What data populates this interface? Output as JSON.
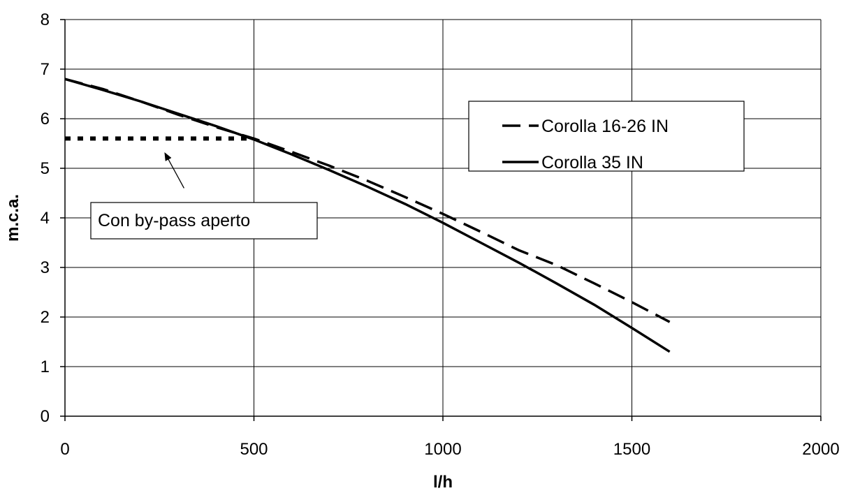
{
  "chart_data": {
    "type": "line",
    "title": "",
    "xlabel": "l/h",
    "ylabel": "m.c.a.",
    "xlim": [
      0,
      2000
    ],
    "ylim": [
      0,
      8
    ],
    "xticks": [
      0,
      500,
      1000,
      1500,
      2000
    ],
    "yticks": [
      0,
      1,
      2,
      3,
      4,
      5,
      6,
      7,
      8
    ],
    "grid": true,
    "legend_placement": "upper-right",
    "series": [
      {
        "name": "Corolla 16-26 IN",
        "style": "dashed",
        "color": "#000000",
        "points": [
          [
            0,
            6.8
          ],
          [
            100,
            6.6
          ],
          [
            200,
            6.35
          ],
          [
            300,
            6.08
          ],
          [
            400,
            5.83
          ],
          [
            500,
            5.6
          ],
          [
            600,
            5.33
          ],
          [
            700,
            5.05
          ],
          [
            800,
            4.75
          ],
          [
            900,
            4.42
          ],
          [
            1000,
            4.08
          ],
          [
            1100,
            3.72
          ],
          [
            1200,
            3.35
          ],
          [
            1300,
            3.05
          ],
          [
            1400,
            2.68
          ],
          [
            1500,
            2.3
          ],
          [
            1600,
            1.9
          ]
        ]
      },
      {
        "name": "Corolla 35 IN",
        "style": "solid",
        "color": "#000000",
        "points": [
          [
            0,
            6.8
          ],
          [
            100,
            6.58
          ],
          [
            200,
            6.35
          ],
          [
            300,
            6.1
          ],
          [
            400,
            5.85
          ],
          [
            500,
            5.58
          ],
          [
            600,
            5.28
          ],
          [
            700,
            4.96
          ],
          [
            800,
            4.63
          ],
          [
            900,
            4.28
          ],
          [
            1000,
            3.9
          ],
          [
            1100,
            3.5
          ],
          [
            1200,
            3.1
          ],
          [
            1300,
            2.68
          ],
          [
            1400,
            2.25
          ],
          [
            1500,
            1.78
          ],
          [
            1600,
            1.3
          ]
        ]
      },
      {
        "name": "",
        "style": "dotted",
        "color": "#000000",
        "points": [
          [
            0,
            5.6
          ],
          [
            500,
            5.6
          ]
        ]
      }
    ],
    "annotations": [
      {
        "text": "Con by-pass aperto",
        "arrow_to": [
          265,
          5.3
        ],
        "arrow_from": [
          315,
          4.6
        ]
      }
    ]
  }
}
